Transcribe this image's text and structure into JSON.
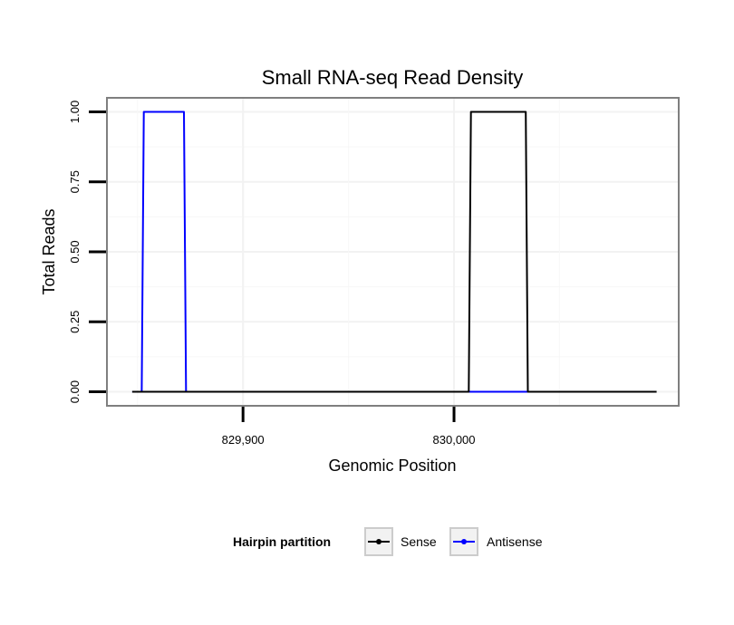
{
  "chart_data": {
    "type": "line",
    "title": "Small RNA-seq Read Density",
    "xlabel": "Genomic Position",
    "ylabel": "Total Reads",
    "xlim": [
      829835.5,
      830106.5
    ],
    "ylim": [
      -0.05,
      1.05
    ],
    "x_ticks": [
      {
        "value": 829900,
        "label": "829,900"
      },
      {
        "value": 830000,
        "label": "830,000"
      }
    ],
    "y_ticks": [
      {
        "value": 0,
        "label": "0.00"
      },
      {
        "value": 0.25,
        "label": "0.25"
      },
      {
        "value": 0.5,
        "label": "0.50"
      },
      {
        "value": 0.75,
        "label": "0.75"
      },
      {
        "value": 1,
        "label": "1.00"
      }
    ],
    "grid": true,
    "legend_position": "bottom",
    "legend_title": "Hairpin partition",
    "series": [
      {
        "name": "Antisense",
        "color": "#0000ff",
        "x": [
          829847.5,
          829852,
          829853,
          829872,
          829873,
          829878,
          829879,
          830007,
          830008,
          830034,
          830035
        ],
        "y": [
          0,
          0,
          1,
          1,
          0,
          0,
          0,
          0,
          0,
          0,
          0
        ]
      },
      {
        "name": "Sense",
        "color": "#000000",
        "x": [
          829847.5,
          830007,
          830008,
          830034,
          830035,
          830096
        ],
        "y": [
          0,
          0,
          1,
          1,
          0,
          0
        ]
      }
    ],
    "legend_entries": [
      {
        "name": "Sense",
        "color": "#000000"
      },
      {
        "name": "Antisense",
        "color": "#0000ff"
      }
    ]
  }
}
